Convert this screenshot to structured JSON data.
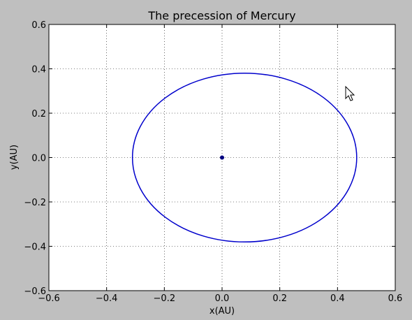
{
  "chart_data": {
    "type": "scatter",
    "title": "The precession of Mercury",
    "xlabel": "x(AU)",
    "ylabel": "y(AU)",
    "xlim": [
      -0.6,
      0.6
    ],
    "ylim": [
      -0.6,
      0.6
    ],
    "xticks": [
      -0.6,
      -0.4,
      -0.2,
      0.0,
      0.2,
      0.4,
      0.6
    ],
    "yticks": [
      -0.6,
      -0.4,
      -0.2,
      0.0,
      0.2,
      0.4,
      0.6
    ],
    "xtick_labels": [
      "−0.6",
      "−0.4",
      "−0.2",
      "0.0",
      "0.2",
      "0.4",
      "0.6"
    ],
    "ytick_labels": [
      "−0.6",
      "−0.4",
      "−0.2",
      "0.0",
      "0.2",
      "0.4",
      "0.6"
    ],
    "grid": true,
    "grid_style": "dotted",
    "series": [
      {
        "kind": "ellipse",
        "color": "#0000cc",
        "center": [
          0.078,
          0.0
        ],
        "semi_axis_x": 0.3885,
        "semi_axis_y": 0.3805
      },
      {
        "kind": "point",
        "color": "#000080",
        "x": 0.0,
        "y": 0.0
      }
    ],
    "cursor_icon": "mouse-pointer-icon"
  }
}
